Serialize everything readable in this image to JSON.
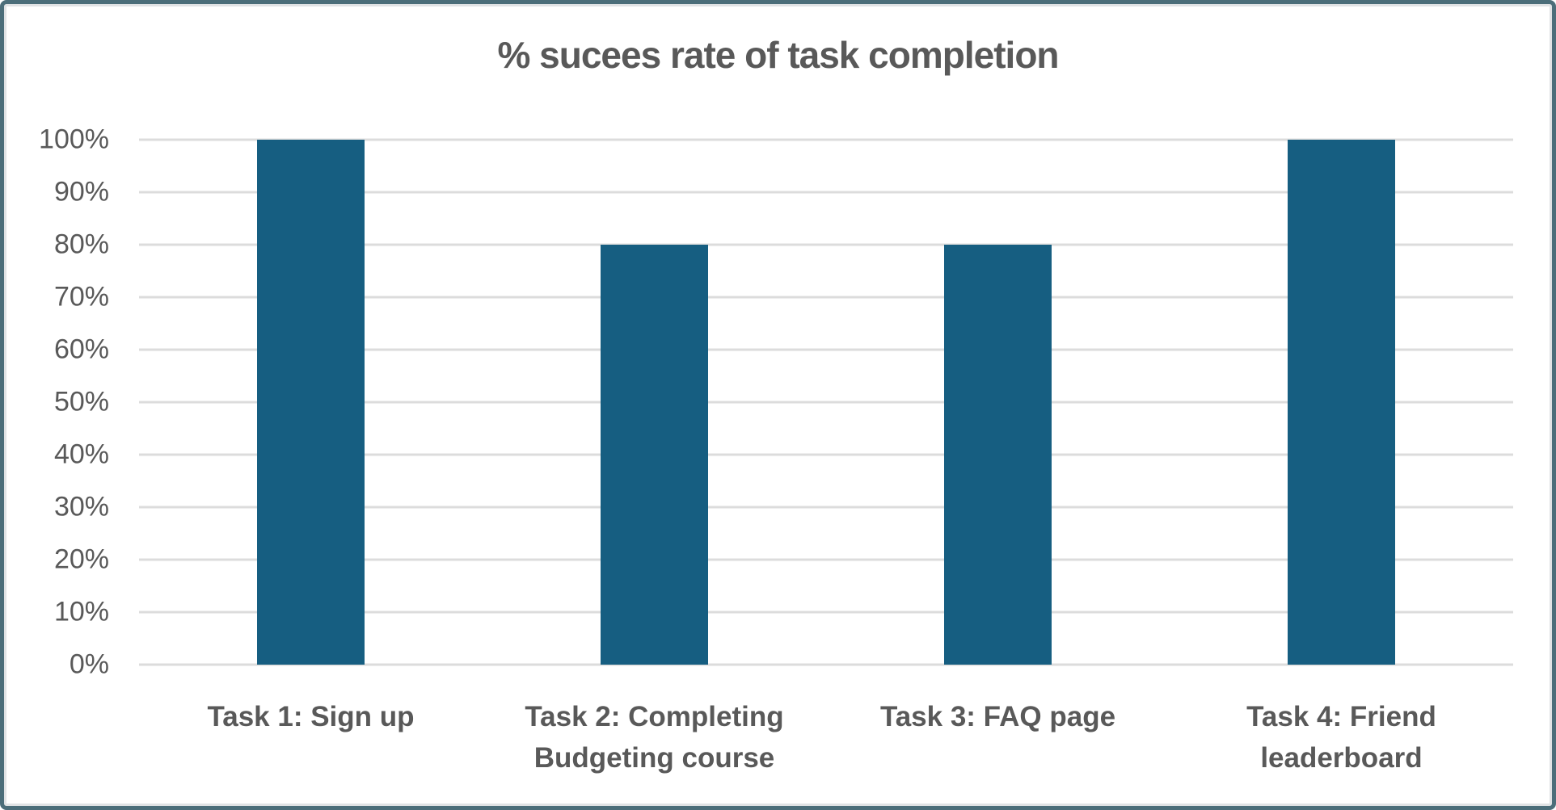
{
  "chart_data": {
    "type": "bar",
    "title": "% sucees rate of task completion",
    "categories": [
      "Task 1: Sign up",
      "Task 2: Completing Budgeting course",
      "Task 3: FAQ page",
      "Task 4: Friend leaderboard"
    ],
    "values": [
      100,
      80,
      80,
      100
    ],
    "y_ticks": [
      "100%",
      "90%",
      "80%",
      "70%",
      "60%",
      "50%",
      "40%",
      "30%",
      "20%",
      "10%",
      "0%"
    ],
    "ylim": [
      0,
      100
    ],
    "xlabel": "",
    "ylabel": "",
    "grid": "horizontal",
    "legend": "none",
    "colors": {
      "bar": "#165E81",
      "gridline": "#DCDCDC",
      "text": "#595959",
      "frame_border": "#4C6E7A",
      "background": "#FFFFFF"
    }
  }
}
